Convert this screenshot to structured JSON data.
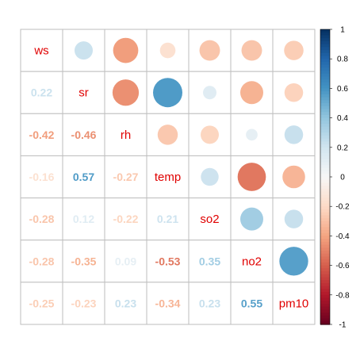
{
  "chart_data": {
    "type": "heatmap",
    "variables": [
      "ws",
      "sr",
      "rh",
      "temp",
      "so2",
      "no2",
      "pm10"
    ],
    "matrix": [
      [
        1.0,
        0.22,
        -0.42,
        -0.16,
        -0.28,
        -0.28,
        -0.25
      ],
      [
        0.22,
        1.0,
        -0.46,
        0.57,
        0.12,
        -0.35,
        -0.23
      ],
      [
        -0.42,
        -0.46,
        1.0,
        -0.27,
        -0.22,
        0.09,
        0.23
      ],
      [
        -0.16,
        0.57,
        -0.27,
        1.0,
        0.21,
        -0.53,
        -0.34
      ],
      [
        -0.28,
        0.12,
        -0.22,
        0.21,
        1.0,
        0.35,
        0.23
      ],
      [
        -0.28,
        -0.35,
        0.09,
        -0.53,
        0.35,
        1.0,
        0.55
      ],
      [
        -0.25,
        -0.23,
        0.23,
        -0.34,
        0.23,
        0.55,
        1.0
      ]
    ],
    "labels_lower": {
      "1-0": "0.22",
      "2-0": "-0.42",
      "2-1": "-0.46",
      "3-0": "-0.16",
      "3-1": "0.57",
      "3-2": "-0.27",
      "4-0": "-0.28",
      "4-1": "0.12",
      "4-2": "-0.22",
      "4-3": "0.21",
      "5-0": "-0.28",
      "5-1": "-0.35",
      "5-2": "0.09",
      "5-3": "-0.53",
      "5-4": "0.35",
      "6-0": "-0.25",
      "6-1": "-0.23",
      "6-2": "0.23",
      "6-3": "-0.34",
      "6-4": "0.23",
      "6-5": "0.55"
    },
    "upper": "circle",
    "lower": "number",
    "diagonal": "variable-name",
    "colorbar": {
      "range": [
        -1,
        1
      ],
      "ticks": [
        "1",
        "0.8",
        "0.6",
        "0.4",
        "0.2",
        "0",
        "-0.2",
        "-0.4",
        "-0.6",
        "-0.8",
        "-1"
      ],
      "tick_values": [
        1,
        0.8,
        0.6,
        0.4,
        0.2,
        0,
        -0.2,
        -0.4,
        -0.6,
        -0.8,
        -1
      ]
    },
    "colors": {
      "negative_strong": "#67001f",
      "neutral": "#f7f7f7",
      "positive_strong": "#053061",
      "diagonal_text": "#e00000",
      "grid": "#bebebe"
    }
  }
}
